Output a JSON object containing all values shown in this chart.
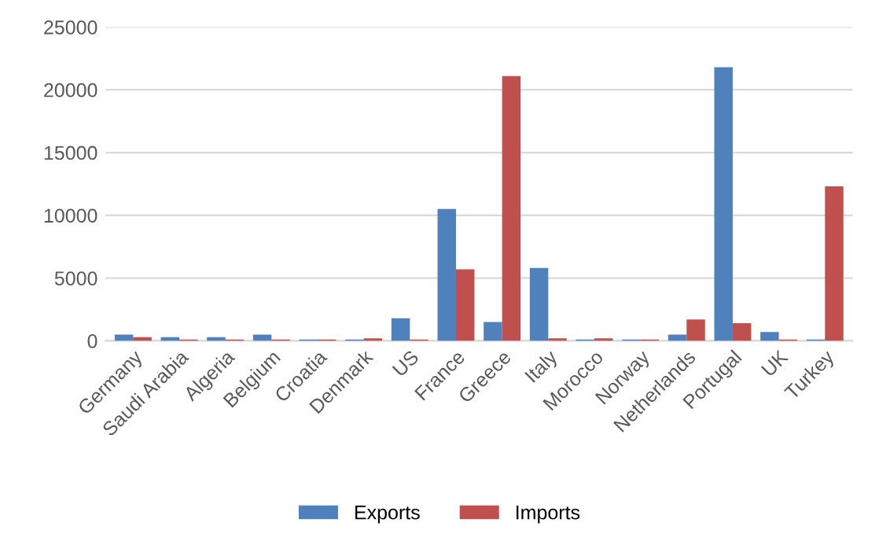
{
  "chart_data": {
    "type": "bar",
    "categories": [
      "Germany",
      "Saudi Arabia",
      "Algeria",
      "Belgium",
      "Croatia",
      "Denmark",
      "US",
      "France",
      "Greece",
      "Italy",
      "Morocco",
      "Norway",
      "Netherlands",
      "Portugal",
      "UK",
      "Turkey"
    ],
    "series": [
      {
        "name": "Exports",
        "color": "#4f81bd",
        "values": [
          500,
          300,
          300,
          500,
          100,
          100,
          1800,
          10500,
          1500,
          5800,
          100,
          100,
          500,
          21800,
          700,
          100
        ]
      },
      {
        "name": "Imports",
        "color": "#c0504d",
        "values": [
          300,
          100,
          100,
          100,
          100,
          200,
          100,
          5700,
          21100,
          200,
          200,
          100,
          1700,
          1400,
          100,
          12300
        ]
      }
    ],
    "ylim": [
      0,
      25000
    ],
    "yticks": [
      0,
      5000,
      10000,
      15000,
      20000,
      25000
    ],
    "grid": "y",
    "legend": "bottom"
  }
}
